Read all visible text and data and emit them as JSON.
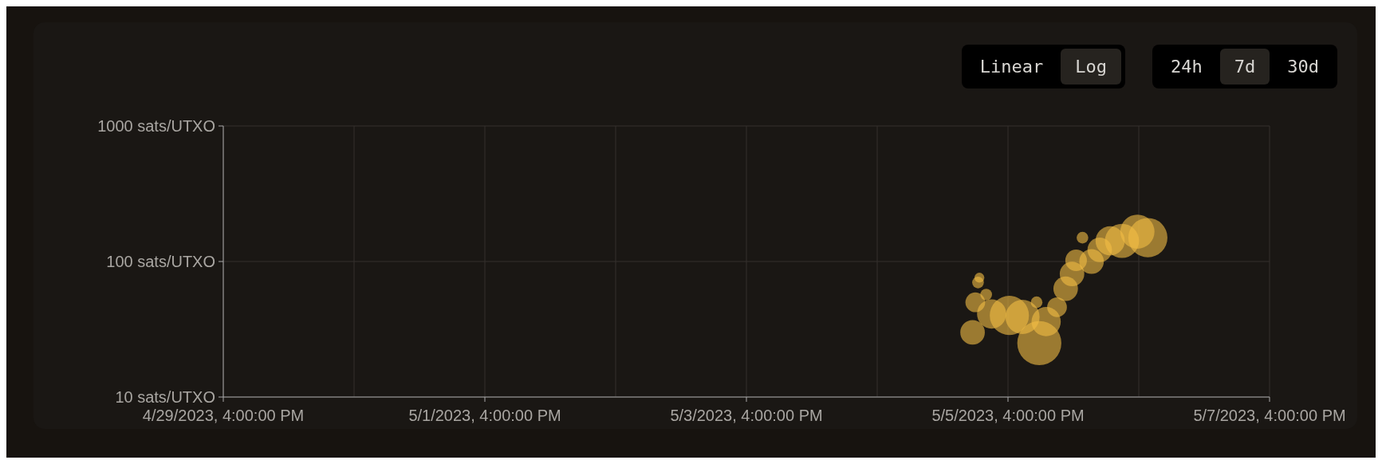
{
  "chart_data": {
    "type": "bubble",
    "annotations": [
      "Linear",
      "Log",
      "24h",
      "7d",
      "30d"
    ],
    "x": [
      "2023-05-05T09:30",
      "2023-05-05T10:00",
      "2023-05-05T10:30",
      "2023-05-05T10:45",
      "2023-05-05T12:00",
      "2023-05-05T13:00",
      "2023-05-05T16:15",
      "2023-05-05T18:40",
      "2023-05-05T21:15",
      "2023-05-05T21:45",
      "2023-05-05T23:00",
      "2023-05-06T01:00",
      "2023-05-06T02:35",
      "2023-05-06T03:45",
      "2023-05-06T04:30",
      "2023-05-06T05:40",
      "2023-05-06T07:20",
      "2023-05-06T08:50",
      "2023-05-06T10:45",
      "2023-05-06T12:55",
      "2023-05-06T15:45",
      "2023-05-06T17:40"
    ],
    "values": [
      30,
      50,
      70,
      76,
      57,
      41,
      40,
      39,
      50,
      25,
      36,
      46,
      63,
      81,
      102,
      150,
      100,
      122,
      142,
      142,
      166,
      150
    ],
    "sizes": [
      0.31,
      0.2,
      0.07,
      0.05,
      0.07,
      0.44,
      0.79,
      0.6,
      0.07,
      1,
      0.44,
      0.2,
      0.31,
      0.31,
      0.24,
      0.07,
      0.31,
      0.31,
      0.44,
      0.6,
      0.6,
      0.79
    ],
    "color": "#f2bd45",
    "log": true,
    "grid": true,
    "xlim": [
      "2023-04-29T16:00",
      "2023-05-07T16:00"
    ],
    "xticks": [
      {
        "value": "2023-04-29T16:00",
        "label": "4/29/2023, 4:00:00 PM"
      },
      {
        "value": "2023-04-30T16:00",
        "label": null
      },
      {
        "value": "2023-05-01T16:00",
        "label": "5/1/2023, 4:00:00 PM"
      },
      {
        "value": "2023-05-02T16:00",
        "label": null
      },
      {
        "value": "2023-05-03T16:00",
        "label": "5/3/2023, 4:00:00 PM"
      },
      {
        "value": "2023-05-04T16:00",
        "label": null
      },
      {
        "value": "2023-05-05T16:00",
        "label": "5/5/2023, 4:00:00 PM"
      },
      {
        "value": "2023-05-06T16:00",
        "label": null
      },
      {
        "value": "2023-05-07T16:00",
        "label": "5/7/2023, 4:00:00 PM"
      }
    ],
    "ylim": [
      10,
      1000
    ],
    "yticks": [
      {
        "value": 10,
        "label": "10 sats/UTXO"
      },
      {
        "value": 100,
        "label": "100 sats/UTXO"
      },
      {
        "value": 1000,
        "label": "1000 sats/UTXO"
      }
    ]
  }
}
